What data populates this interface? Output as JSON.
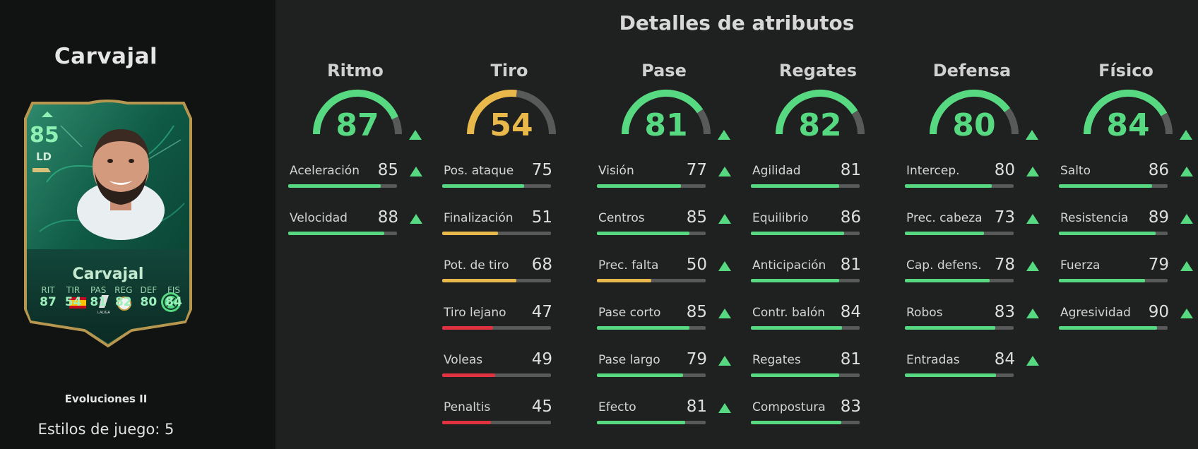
{
  "player": {
    "name": "Carvajal",
    "card": {
      "rating": "85",
      "position": "LD",
      "name": "Carvajal",
      "stats": [
        {
          "label": "RIT",
          "value": "87"
        },
        {
          "label": "TIR",
          "value": "54"
        },
        {
          "label": "PAS",
          "value": "81"
        },
        {
          "label": "REG",
          "value": "82"
        },
        {
          "label": "DEF",
          "value": "80"
        },
        {
          "label": "FIS",
          "value": "84"
        }
      ],
      "accent_color": "#8ff0b4",
      "frame_color": "#b7964f"
    },
    "version": "Evoluciones II",
    "playstyles": "Estilos de juego: 5"
  },
  "attributes": {
    "title": "Detalles de atributos",
    "categories": [
      {
        "name": "Ritmo",
        "value": 87,
        "upgraded": true,
        "stats": [
          {
            "name": "Aceleración",
            "value": 85,
            "upgraded": true
          },
          {
            "name": "Velocidad",
            "value": 88,
            "upgraded": true
          }
        ]
      },
      {
        "name": "Tiro",
        "value": 54,
        "upgraded": false,
        "stats": [
          {
            "name": "Pos. ataque",
            "value": 75,
            "upgraded": false
          },
          {
            "name": "Finalización",
            "value": 51,
            "upgraded": false
          },
          {
            "name": "Pot. de tiro",
            "value": 68,
            "upgraded": false
          },
          {
            "name": "Tiro lejano",
            "value": 47,
            "upgraded": false
          },
          {
            "name": "Voleas",
            "value": 49,
            "upgraded": false
          },
          {
            "name": "Penaltis",
            "value": 45,
            "upgraded": false
          }
        ]
      },
      {
        "name": "Pase",
        "value": 81,
        "upgraded": true,
        "stats": [
          {
            "name": "Visión",
            "value": 77,
            "upgraded": true
          },
          {
            "name": "Centros",
            "value": 85,
            "upgraded": true
          },
          {
            "name": "Prec. falta",
            "value": 50,
            "upgraded": true
          },
          {
            "name": "Pase corto",
            "value": 85,
            "upgraded": true
          },
          {
            "name": "Pase largo",
            "value": 79,
            "upgraded": true
          },
          {
            "name": "Efecto",
            "value": 81,
            "upgraded": true
          }
        ]
      },
      {
        "name": "Regates",
        "value": 82,
        "upgraded": false,
        "stats": [
          {
            "name": "Agilidad",
            "value": 81,
            "upgraded": false
          },
          {
            "name": "Equilibrio",
            "value": 86,
            "upgraded": false
          },
          {
            "name": "Anticipación",
            "value": 81,
            "upgraded": false
          },
          {
            "name": "Contr. balón",
            "value": 84,
            "upgraded": false
          },
          {
            "name": "Regates",
            "value": 81,
            "upgraded": false
          },
          {
            "name": "Compostura",
            "value": 83,
            "upgraded": false
          }
        ]
      },
      {
        "name": "Defensa",
        "value": 80,
        "upgraded": true,
        "stats": [
          {
            "name": "Intercep.",
            "value": 80,
            "upgraded": true
          },
          {
            "name": "Prec. cabeza",
            "value": 73,
            "upgraded": true
          },
          {
            "name": "Cap. defens.",
            "value": 78,
            "upgraded": true
          },
          {
            "name": "Robos",
            "value": 83,
            "upgraded": true
          },
          {
            "name": "Entradas",
            "value": 84,
            "upgraded": true
          }
        ]
      },
      {
        "name": "Físico",
        "value": 84,
        "upgraded": true,
        "stats": [
          {
            "name": "Salto",
            "value": 86,
            "upgraded": true
          },
          {
            "name": "Resistencia",
            "value": 89,
            "upgraded": true
          },
          {
            "name": "Fuerza",
            "value": 79,
            "upgraded": true
          },
          {
            "name": "Agresividad",
            "value": 90,
            "upgraded": true
          }
        ]
      }
    ]
  },
  "colors": {
    "high": "#57d982",
    "mid": "#e8b84a",
    "low": "#e0333f",
    "track": "#575a59",
    "upgrade_arrow": "#57d982"
  }
}
